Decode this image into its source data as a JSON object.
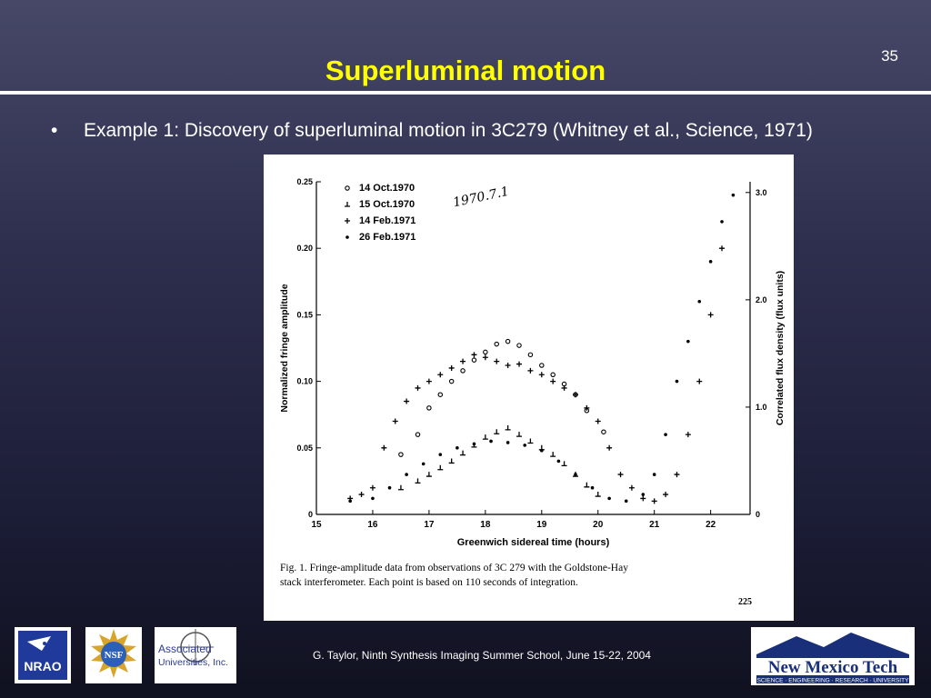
{
  "slide": {
    "number": "35",
    "title": "Superluminal motion",
    "bullet_marker": "•",
    "bullet_text": "Example 1: Discovery of superluminal motion in 3C279 (Whitney et al., Science, 1971)"
  },
  "chart_data": {
    "type": "scatter",
    "title": "",
    "xlabel": "Greenwich sidereal time (hours)",
    "ylabel": "Normalized fringe amplitude",
    "y2label": "Correlated flux density (flux units)",
    "xlim": [
      15,
      22.7
    ],
    "ylim": [
      0,
      0.25
    ],
    "y2lim": [
      0,
      3.1
    ],
    "x_ticks": [
      "15",
      "16",
      "17",
      "18",
      "19",
      "20",
      "21",
      "22"
    ],
    "y_ticks": [
      "0",
      "0.05",
      "0.10",
      "0.15",
      "0.20",
      "0.25"
    ],
    "y2_ticks": [
      "0",
      "1.0",
      "2.0",
      "3.0"
    ],
    "grid": false,
    "legend_position": "top-left",
    "handwritten_note": "1970.7.1",
    "caption": "Fig. 1. Fringe-amplitude data from observations of 3C 279 with the Goldstone-Haystack interferometer. Each point is based on 110 seconds of integration.",
    "page_number": "225",
    "series": [
      {
        "name": "14 Oct.1970",
        "marker": "o",
        "x": [
          16.5,
          16.8,
          17.0,
          17.2,
          17.4,
          17.6,
          17.8,
          18.0,
          18.2,
          18.4,
          18.6,
          18.8,
          19.0,
          19.2,
          19.4,
          19.6,
          19.8,
          20.1
        ],
        "y": [
          0.045,
          0.06,
          0.08,
          0.09,
          0.1,
          0.108,
          0.116,
          0.122,
          0.128,
          0.13,
          0.127,
          0.12,
          0.112,
          0.105,
          0.098,
          0.09,
          0.078,
          0.062
        ]
      },
      {
        "name": "15 Oct.1970",
        "marker": "⊥",
        "x": [
          16.5,
          16.8,
          17.0,
          17.2,
          17.4,
          17.6,
          17.8,
          18.0,
          18.2,
          18.4,
          18.6,
          18.8,
          19.0,
          19.2,
          19.4,
          19.6,
          19.8,
          20.0
        ],
        "y": [
          0.02,
          0.025,
          0.03,
          0.035,
          0.04,
          0.046,
          0.052,
          0.058,
          0.062,
          0.065,
          0.06,
          0.055,
          0.05,
          0.045,
          0.038,
          0.03,
          0.022,
          0.015
        ]
      },
      {
        "name": "14 Feb.1971",
        "marker": "+",
        "x": [
          15.6,
          15.8,
          16.0,
          16.2,
          16.4,
          16.6,
          16.8,
          17.0,
          17.2,
          17.4,
          17.6,
          17.8,
          18.0,
          18.2,
          18.4,
          18.6,
          18.8,
          19.0,
          19.2,
          19.4,
          19.6,
          19.8,
          20.0,
          20.2,
          20.4,
          20.6,
          20.8,
          21.0,
          21.2,
          21.4,
          21.6,
          21.8,
          22.0,
          22.2
        ],
        "y": [
          0.012,
          0.015,
          0.02,
          0.05,
          0.07,
          0.085,
          0.095,
          0.1,
          0.105,
          0.11,
          0.115,
          0.12,
          0.118,
          0.115,
          0.112,
          0.113,
          0.108,
          0.105,
          0.1,
          0.095,
          0.09,
          0.08,
          0.07,
          0.05,
          0.03,
          0.02,
          0.012,
          0.01,
          0.015,
          0.03,
          0.06,
          0.1,
          0.15,
          0.2
        ]
      },
      {
        "name": "26 Feb.1971",
        "marker": "•",
        "x": [
          15.6,
          16.0,
          16.3,
          16.6,
          16.9,
          17.2,
          17.5,
          17.8,
          18.1,
          18.4,
          18.7,
          19.0,
          19.3,
          19.6,
          19.9,
          20.2,
          20.5,
          20.8,
          21.0,
          21.2,
          21.4,
          21.6,
          21.8,
          22.0,
          22.2,
          22.4
        ],
        "y": [
          0.01,
          0.012,
          0.02,
          0.03,
          0.038,
          0.045,
          0.05,
          0.053,
          0.055,
          0.054,
          0.052,
          0.048,
          0.04,
          0.03,
          0.02,
          0.012,
          0.01,
          0.015,
          0.03,
          0.06,
          0.1,
          0.13,
          0.16,
          0.19,
          0.22,
          0.24
        ]
      }
    ]
  },
  "footer": {
    "text": "G. Taylor, Ninth Synthesis Imaging Summer School, June 15-22, 2004",
    "logos": {
      "nrao": "NRAO",
      "nsf": "NSF",
      "aui_line1": "Associated",
      "aui_line2": "Universities, Inc.",
      "nmt_name": "New Mexico Tech",
      "nmt_tagline": "SCIENCE · ENGINEERING · RESEARCH · UNIVERSITY"
    }
  },
  "colors": {
    "title": "#ffff00",
    "text": "#ffffff",
    "nmt_brand": "#1a2f7a"
  }
}
